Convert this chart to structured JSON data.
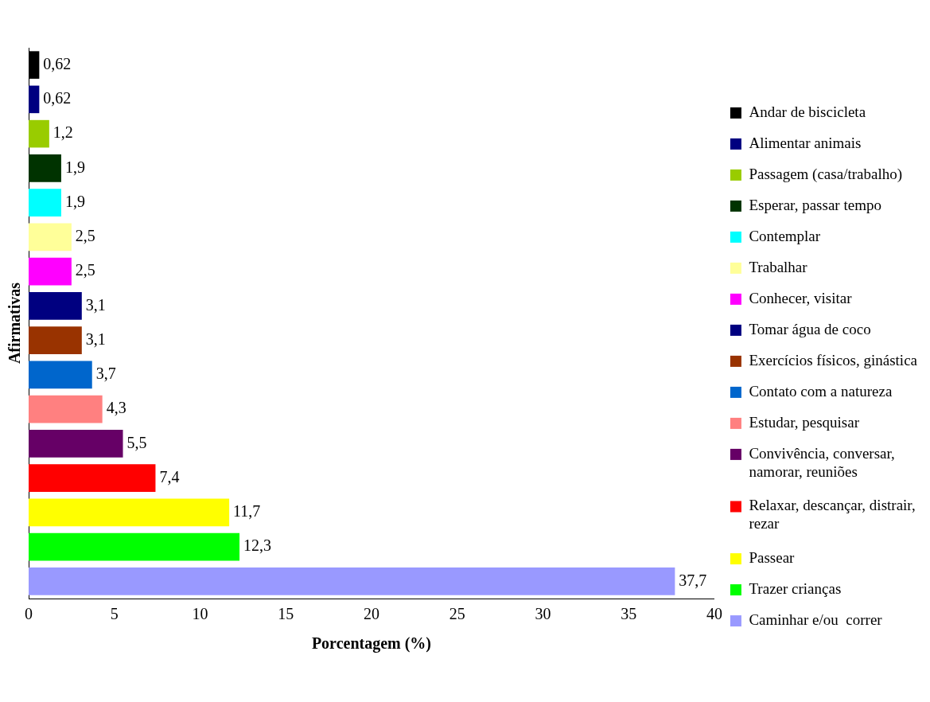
{
  "chart_data": {
    "type": "bar",
    "orientation": "horizontal",
    "stacked": true,
    "xlabel": "Porcentagem (%)",
    "ylabel": "Afirmativas",
    "categories": [
      null,
      null,
      null,
      null,
      null,
      null,
      null,
      null,
      null,
      null,
      null,
      null,
      null,
      null,
      null,
      null
    ],
    "series": [
      {
        "name": "Andar de biscicleta",
        "color": "#000000",
        "values": [
          0.62,
          null,
          null,
          null,
          null,
          null,
          null,
          null,
          null,
          null,
          null,
          null,
          null,
          null,
          null,
          null
        ],
        "value_labels": [
          "0,62",
          null,
          null,
          null,
          null,
          null,
          null,
          null,
          null,
          null,
          null,
          null,
          null,
          null,
          null,
          null
        ]
      },
      {
        "name": "Alimentar animais",
        "color": "#000080",
        "values": [
          null,
          0.62,
          null,
          null,
          null,
          null,
          null,
          null,
          null,
          null,
          null,
          null,
          null,
          null,
          null,
          null
        ],
        "value_labels": [
          null,
          "0,62",
          null,
          null,
          null,
          null,
          null,
          null,
          null,
          null,
          null,
          null,
          null,
          null,
          null,
          null
        ]
      },
      {
        "name": "Passagem (casa/trabalho)",
        "color": "#99cc00",
        "values": [
          null,
          null,
          1.2,
          null,
          null,
          null,
          null,
          null,
          null,
          null,
          null,
          null,
          null,
          null,
          null,
          null
        ],
        "value_labels": [
          null,
          null,
          "1,2",
          null,
          null,
          null,
          null,
          null,
          null,
          null,
          null,
          null,
          null,
          null,
          null,
          null
        ]
      },
      {
        "name": "Esperar, passar tempo",
        "color": "#003300",
        "values": [
          null,
          null,
          null,
          1.9,
          null,
          null,
          null,
          null,
          null,
          null,
          null,
          null,
          null,
          null,
          null,
          null
        ],
        "value_labels": [
          null,
          null,
          null,
          "1,9",
          null,
          null,
          null,
          null,
          null,
          null,
          null,
          null,
          null,
          null,
          null,
          null
        ]
      },
      {
        "name": "Contemplar",
        "color": "#00ffff",
        "values": [
          null,
          null,
          null,
          null,
          1.9,
          null,
          null,
          null,
          null,
          null,
          null,
          null,
          null,
          null,
          null,
          null
        ],
        "value_labels": [
          null,
          null,
          null,
          null,
          "1,9",
          null,
          null,
          null,
          null,
          null,
          null,
          null,
          null,
          null,
          null,
          null
        ]
      },
      {
        "name": "Trabalhar",
        "color": "#ffff99",
        "values": [
          null,
          null,
          null,
          null,
          null,
          2.5,
          null,
          null,
          null,
          null,
          null,
          null,
          null,
          null,
          null,
          null
        ],
        "value_labels": [
          null,
          null,
          null,
          null,
          null,
          "2,5",
          null,
          null,
          null,
          null,
          null,
          null,
          null,
          null,
          null,
          null
        ]
      },
      {
        "name": "Conhecer, visitar",
        "color": "#ff00ff",
        "values": [
          null,
          null,
          null,
          null,
          null,
          null,
          2.5,
          null,
          null,
          null,
          null,
          null,
          null,
          null,
          null,
          null
        ],
        "value_labels": [
          null,
          null,
          null,
          null,
          null,
          null,
          "2,5",
          null,
          null,
          null,
          null,
          null,
          null,
          null,
          null,
          null
        ]
      },
      {
        "name": "Tomar água de coco",
        "color": "#000080",
        "values": [
          null,
          null,
          null,
          null,
          null,
          null,
          null,
          3.1,
          null,
          null,
          null,
          null,
          null,
          null,
          null,
          null
        ],
        "value_labels": [
          null,
          null,
          null,
          null,
          null,
          null,
          null,
          "3,1",
          null,
          null,
          null,
          null,
          null,
          null,
          null,
          null
        ]
      },
      {
        "name": "Exercícios físicos, ginástica",
        "color": "#993300",
        "values": [
          null,
          null,
          null,
          null,
          null,
          null,
          null,
          null,
          3.1,
          null,
          null,
          null,
          null,
          null,
          null,
          null
        ],
        "value_labels": [
          null,
          null,
          null,
          null,
          null,
          null,
          null,
          null,
          "3,1",
          null,
          null,
          null,
          null,
          null,
          null,
          null
        ]
      },
      {
        "name": "Contato com a natureza",
        "color": "#0066cc",
        "values": [
          null,
          null,
          null,
          null,
          null,
          null,
          null,
          null,
          null,
          3.7,
          null,
          null,
          null,
          null,
          null,
          null
        ],
        "value_labels": [
          null,
          null,
          null,
          null,
          null,
          null,
          null,
          null,
          null,
          "3,7",
          null,
          null,
          null,
          null,
          null,
          null
        ]
      },
      {
        "name": "Estudar, pesquisar",
        "color": "#ff8080",
        "values": [
          null,
          null,
          null,
          null,
          null,
          null,
          null,
          null,
          null,
          null,
          4.3,
          null,
          null,
          null,
          null,
          null
        ],
        "value_labels": [
          null,
          null,
          null,
          null,
          null,
          null,
          null,
          null,
          null,
          null,
          "4,3",
          null,
          null,
          null,
          null,
          null
        ]
      },
      {
        "name": "Convivência, conversar, namorar, reuniões",
        "color": "#660066",
        "values": [
          null,
          null,
          null,
          null,
          null,
          null,
          null,
          null,
          null,
          null,
          null,
          5.5,
          null,
          null,
          null,
          null
        ],
        "value_labels": [
          null,
          null,
          null,
          null,
          null,
          null,
          null,
          null,
          null,
          null,
          null,
          "5,5",
          null,
          null,
          null,
          null
        ]
      },
      {
        "name": "Relaxar, descançar, distrair, rezar",
        "color": "#ff0000",
        "values": [
          null,
          null,
          null,
          null,
          null,
          null,
          null,
          null,
          null,
          null,
          null,
          null,
          7.4,
          null,
          null,
          null
        ],
        "value_labels": [
          null,
          null,
          null,
          null,
          null,
          null,
          null,
          null,
          null,
          null,
          null,
          null,
          "7,4",
          null,
          null,
          null
        ]
      },
      {
        "name": "Passear",
        "color": "#ffff00",
        "values": [
          null,
          null,
          null,
          null,
          null,
          null,
          null,
          null,
          null,
          null,
          null,
          null,
          null,
          11.7,
          null,
          null
        ],
        "value_labels": [
          null,
          null,
          null,
          null,
          null,
          null,
          null,
          null,
          null,
          null,
          null,
          null,
          null,
          "11,7",
          null,
          null
        ]
      },
      {
        "name": "Trazer crianças",
        "color": "#00ff00",
        "values": [
          null,
          null,
          null,
          null,
          null,
          null,
          null,
          null,
          null,
          null,
          null,
          null,
          null,
          null,
          12.3,
          null
        ],
        "value_labels": [
          null,
          null,
          null,
          null,
          null,
          null,
          null,
          null,
          null,
          null,
          null,
          null,
          null,
          null,
          "12,3",
          null
        ]
      },
      {
        "name": "Caminhar e/ou  correr",
        "color": "#9999ff",
        "values": [
          null,
          null,
          null,
          null,
          null,
          null,
          null,
          null,
          null,
          null,
          null,
          null,
          null,
          null,
          null,
          37.7
        ],
        "value_labels": [
          null,
          null,
          null,
          null,
          null,
          null,
          null,
          null,
          null,
          null,
          null,
          null,
          null,
          null,
          null,
          "37,7"
        ]
      }
    ],
    "xlim": [
      0,
      40
    ],
    "xticks": [
      0,
      5,
      10,
      15,
      20,
      25,
      30,
      35,
      40
    ],
    "grid": false,
    "legend": "right",
    "tick_labels": "x"
  }
}
